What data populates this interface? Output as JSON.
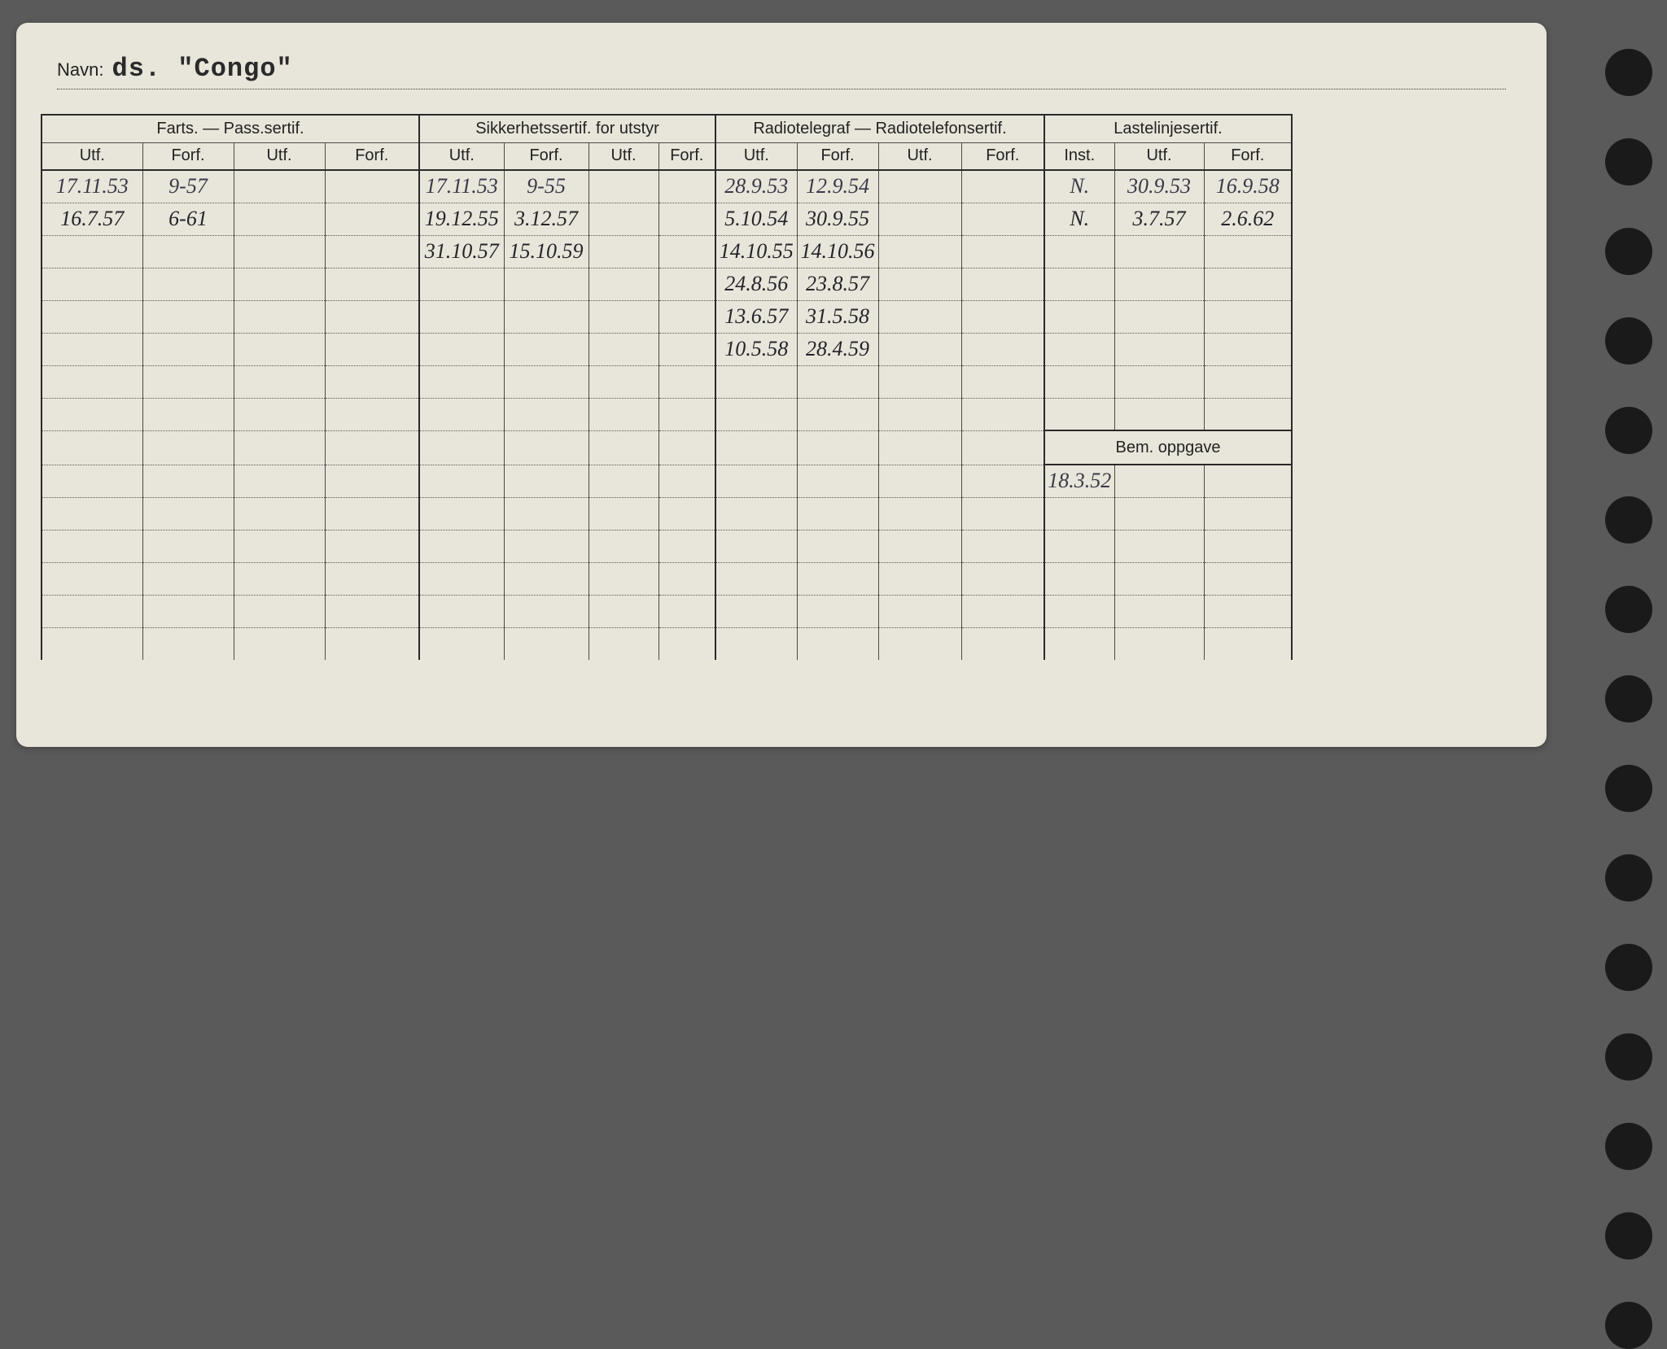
{
  "card": {
    "navn_label": "Navn:",
    "navn_value": "ds. \"Congo\"",
    "groups": [
      {
        "title": "Farts. — Pass.sertif.",
        "cols": [
          "Utf.",
          "Forf.",
          "Utf.",
          "Forf."
        ]
      },
      {
        "title": "Sikkerhetssertif. for utstyr",
        "cols": [
          "Utf.",
          "Forf.",
          "Utf.",
          "Forf."
        ]
      },
      {
        "title": "Radiotelegraf — Radiotelefonsertif.",
        "cols": [
          "Utf.",
          "Forf.",
          "Utf.",
          "Forf."
        ]
      },
      {
        "title": "Lastelinjesertif.",
        "cols": [
          "Inst.",
          "Utf.",
          "Forf."
        ]
      }
    ],
    "rows": [
      {
        "cells": [
          "17.11.53",
          "9-57",
          "",
          "",
          "17.11.53",
          "9-55",
          "",
          "",
          "28.9.53",
          "12.9.54",
          "",
          "",
          "N.",
          "30.9.53",
          "16.9.58"
        ],
        "ink": "blue"
      },
      {
        "cells": [
          "16.7.57",
          "6-61",
          "",
          "",
          "19.12.55",
          "3.12.57",
          "",
          "",
          "5.10.54",
          "30.9.55",
          "",
          "",
          "N.",
          "3.7.57",
          "2.6.62"
        ],
        "ink": "black"
      },
      {
        "cells": [
          "",
          "",
          "",
          "",
          "31.10.57",
          "15.10.59",
          "",
          "",
          "14.10.55",
          "14.10.56",
          "",
          "",
          "",
          "",
          ""
        ],
        "ink": "black"
      },
      {
        "cells": [
          "",
          "",
          "",
          "",
          "",
          "",
          "",
          "",
          "24.8.56",
          "23.8.57",
          "",
          "",
          "",
          "",
          ""
        ],
        "ink": "black"
      },
      {
        "cells": [
          "",
          "",
          "",
          "",
          "",
          "",
          "",
          "",
          "13.6.57",
          "31.5.58",
          "",
          "",
          "",
          "",
          ""
        ],
        "ink": "black"
      },
      {
        "cells": [
          "",
          "",
          "",
          "",
          "",
          "",
          "",
          "",
          "10.5.58",
          "28.4.59",
          "",
          "",
          "",
          "",
          ""
        ],
        "ink": "black"
      },
      {
        "cells": [
          "",
          "",
          "",
          "",
          "",
          "",
          "",
          "",
          "",
          "",
          "",
          "",
          "",
          "",
          ""
        ],
        "ink": "blue"
      },
      {
        "cells": [
          "",
          "",
          "",
          "",
          "",
          "",
          "",
          "",
          "",
          "",
          "",
          "",
          "",
          "",
          ""
        ],
        "ink": "blue"
      }
    ],
    "bem": {
      "label": "Bem. oppgave",
      "rows": [
        [
          "18.3.52",
          "",
          ""
        ],
        [
          "",
          "",
          ""
        ],
        [
          "",
          "",
          ""
        ],
        [
          "",
          "",
          ""
        ],
        [
          "",
          "",
          ""
        ]
      ]
    },
    "left_extra_rows": 6,
    "colors": {
      "paper": "#e8e5da",
      "ink_printed": "#222222",
      "ink_blue": "#3a3a48",
      "ink_black": "#24242a",
      "border": "#2a2a2a",
      "dotted": "#5a5a55",
      "page_bg": "#5a5a5a"
    },
    "typography": {
      "printed_font": "Arial",
      "printed_size_pt": 15,
      "typed_font": "Courier New",
      "typed_size_pt": 24,
      "handwriting_font": "cursive",
      "handwriting_size_pt": 20
    }
  }
}
